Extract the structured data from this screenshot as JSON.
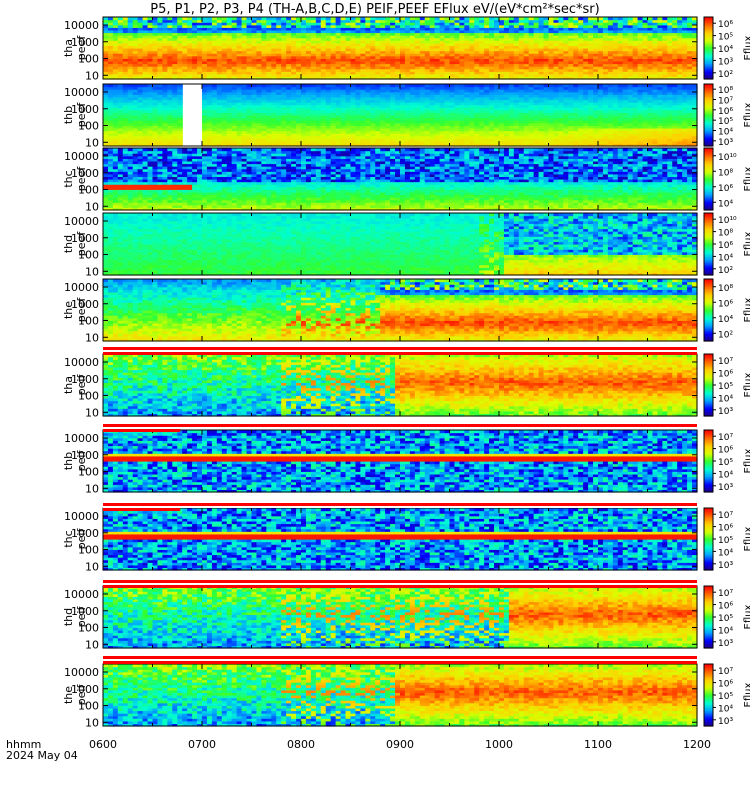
{
  "chart_data": {
    "type": "heatmap",
    "title": "P5, P1, P2, P3, P4 (TH-A,B,C,D,E) PEIF,PEEF EFlux eV/(eV*cm²*sec*sr)",
    "x_axis": {
      "ticks": [
        "0600",
        "0700",
        "0800",
        "0900",
        "1000",
        "1100",
        "1200"
      ],
      "label_line1": "hhmm",
      "label_line2": "2024 May 04",
      "range_hours": [
        6,
        12
      ]
    },
    "panels": [
      {
        "name": "tha peef",
        "ylabel": [
          "tha",
          "peef"
        ],
        "yticks": [
          "10",
          "100",
          "1000",
          "10000"
        ],
        "cbar_label": "Eflux",
        "cbar_ticks": [
          "10²",
          "10³",
          "10⁴",
          "10⁵",
          "10⁶"
        ],
        "cbar_exp": [
          2,
          6
        ],
        "species": "electron",
        "ramp": 0.89,
        "gap": null
      },
      {
        "name": "thb peef",
        "ylabel": [
          "thb",
          "peef"
        ],
        "yticks": [
          "10",
          "100",
          "1000",
          "10000"
        ],
        "cbar_label": "Eflux",
        "cbar_ticks": [
          "10³",
          "10⁴",
          "10⁵",
          "10⁶",
          "10⁷",
          "10⁸"
        ],
        "cbar_exp": [
          3,
          8
        ],
        "species": "electron_quiet",
        "ramp": null,
        "gap": [
          6.82,
          6.98
        ]
      },
      {
        "name": "thc peef",
        "ylabel": [
          "thc",
          "peef"
        ],
        "yticks": [
          "10",
          "100",
          "1000",
          "10000"
        ],
        "cbar_label": "Eflux",
        "cbar_ticks": [
          "10⁴",
          "10⁶",
          "10⁸",
          "10¹⁰"
        ],
        "cbar_exp": [
          4,
          10
        ],
        "species": "electron_dark",
        "ramp": null,
        "gap": null
      },
      {
        "name": "thd peef",
        "ylabel": [
          "thd",
          "peef"
        ],
        "yticks": [
          "10",
          "100",
          "1000",
          "10000"
        ],
        "cbar_label": "Eflux",
        "cbar_ticks": [
          "10²",
          "10⁴",
          "10⁶",
          "10⁸",
          "10¹⁰"
        ],
        "cbar_exp": [
          2,
          10
        ],
        "species": "electron_green",
        "ramp": 10.05,
        "gap": null
      },
      {
        "name": "the peef",
        "ylabel": [
          "the",
          "peef"
        ],
        "yticks": [
          "10",
          "100",
          "1000",
          "10000"
        ],
        "cbar_label": "Eflux",
        "cbar_ticks": [
          "10²",
          "10⁴",
          "10⁶",
          "10⁸"
        ],
        "cbar_exp": [
          2,
          8
        ],
        "species": "electron",
        "ramp": 8.8,
        "gap": null
      },
      {
        "name": "tha peif",
        "ylabel": [
          "tha",
          "peif"
        ],
        "yticks": [
          "10",
          "100",
          "1000",
          "10000"
        ],
        "cbar_label": "Eflux",
        "cbar_ticks": [
          "10³",
          "10⁴",
          "10⁵",
          "10⁶",
          "10⁷"
        ],
        "cbar_exp": [
          3,
          7
        ],
        "species": "ion",
        "ramp": 8.95,
        "gap": null
      },
      {
        "name": "thb peif",
        "ylabel": [
          "thb",
          "peif"
        ],
        "yticks": [
          "10",
          "100",
          "1000",
          "10000"
        ],
        "cbar_label": "Eflux",
        "cbar_ticks": [
          "10³",
          "10⁴",
          "10⁵",
          "10⁶",
          "10⁷"
        ],
        "cbar_exp": [
          3,
          7
        ],
        "species": "ion_band",
        "ramp": null,
        "gap": null
      },
      {
        "name": "thc peif",
        "ylabel": [
          "thc",
          "peif"
        ],
        "yticks": [
          "10",
          "100",
          "1000",
          "10000"
        ],
        "cbar_label": "Eflux",
        "cbar_ticks": [
          "10³",
          "10⁴",
          "10⁵",
          "10⁶",
          "10⁷"
        ],
        "cbar_exp": [
          3,
          7
        ],
        "species": "ion_band",
        "ramp": null,
        "gap": null
      },
      {
        "name": "thd peif",
        "ylabel": [
          "thd",
          "peif"
        ],
        "yticks": [
          "10",
          "100",
          "1000",
          "10000"
        ],
        "cbar_label": "Eflux",
        "cbar_ticks": [
          "10³",
          "10⁴",
          "10⁵",
          "10⁶",
          "10⁷"
        ],
        "cbar_exp": [
          3,
          7
        ],
        "species": "ion",
        "ramp": 10.1,
        "gap": null
      },
      {
        "name": "the peif",
        "ylabel": [
          "the",
          "peif"
        ],
        "yticks": [
          "10",
          "100",
          "1000",
          "10000"
        ],
        "cbar_label": "Eflux",
        "cbar_ticks": [
          "10³",
          "10⁴",
          "10⁵",
          "10⁶",
          "10⁷"
        ],
        "cbar_exp": [
          3,
          7
        ],
        "species": "ion",
        "ramp": 8.95,
        "gap": null
      }
    ],
    "y_axis": {
      "scale": "log",
      "range": [
        6,
        30000
      ]
    },
    "colormap": [
      "#20007a",
      "#0000ff",
      "#00a0ff",
      "#00ffd0",
      "#30ff30",
      "#d8ff00",
      "#ffd000",
      "#ff6a00",
      "#ff0000"
    ]
  }
}
